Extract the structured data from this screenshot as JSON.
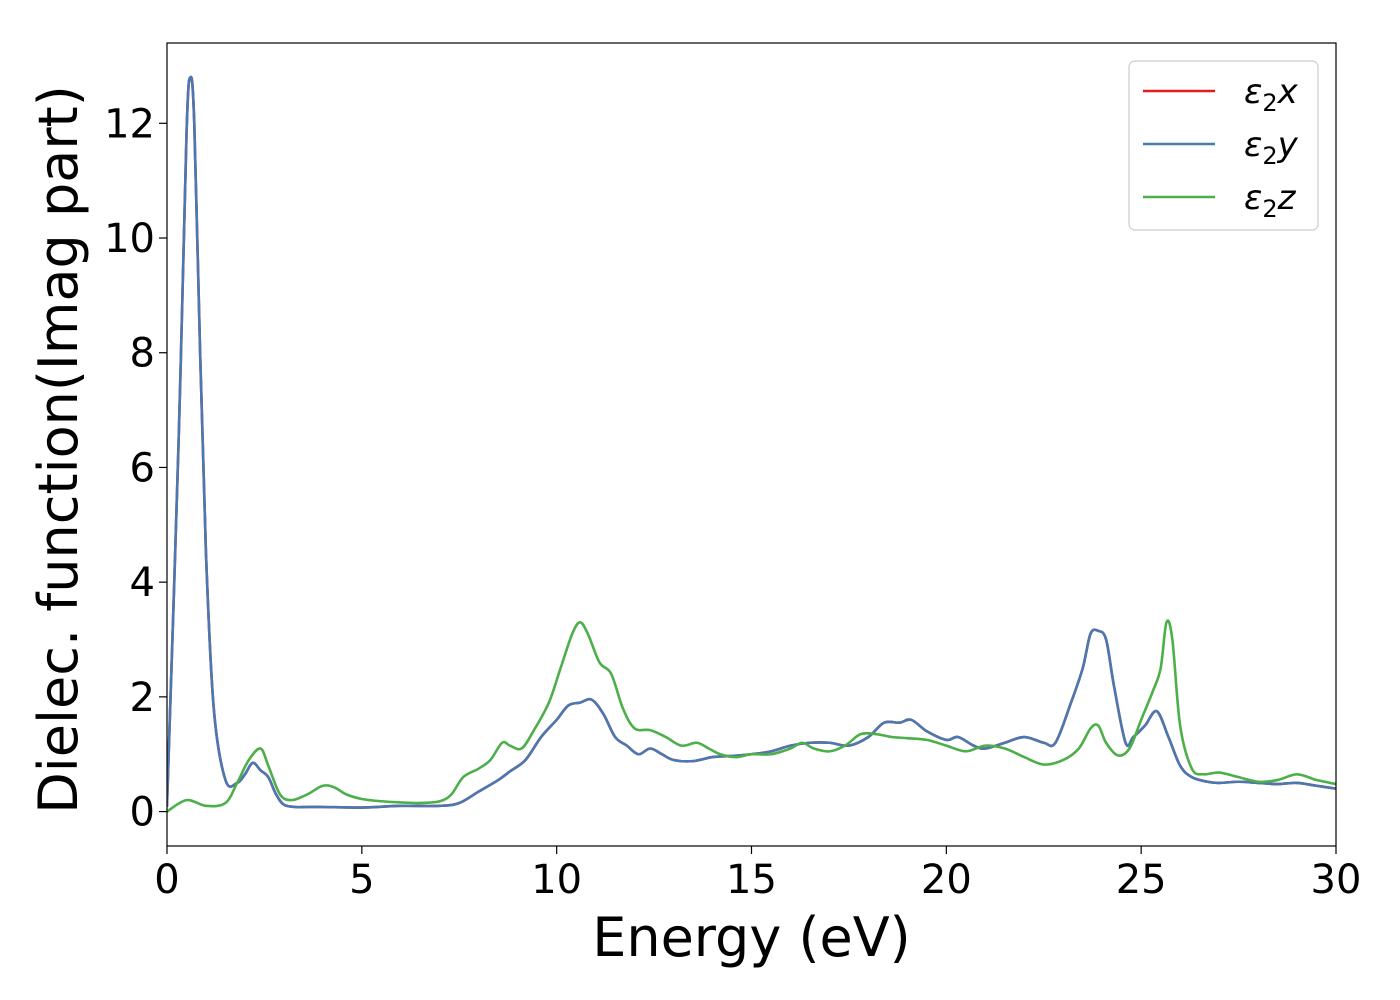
{
  "chart_data": {
    "type": "line",
    "xlabel": "Energy (eV)",
    "ylabel": "Dielec. function(Imag part)",
    "xlim": [
      0,
      30
    ],
    "ylim": [
      -0.6,
      13.4
    ],
    "xticks": [
      0,
      5,
      10,
      15,
      20,
      25,
      30
    ],
    "yticks": [
      0,
      2,
      4,
      6,
      8,
      10,
      12
    ],
    "grid": false,
    "legend_position": "top-right",
    "series": [
      {
        "name": "ε₂x",
        "legend_main": "ε",
        "legend_sub": "2",
        "legend_suffix": "x",
        "color": "#e41a1c",
        "x": [
          0,
          0.3,
          0.5,
          0.6,
          0.7,
          0.85,
          1.0,
          1.2,
          1.5,
          1.8,
          2.0,
          2.2,
          2.4,
          2.6,
          2.8,
          3.0,
          3.3,
          3.6,
          4,
          5,
          6,
          7,
          7.5,
          8,
          8.5,
          8.8,
          9.2,
          9.6,
          10.0,
          10.3,
          10.6,
          10.9,
          11.2,
          11.5,
          11.8,
          12.1,
          12.4,
          12.7,
          13.0,
          13.5,
          14,
          14.5,
          15,
          15.5,
          16,
          16.5,
          17,
          17.5,
          18,
          18.4,
          18.8,
          19.1,
          19.5,
          20,
          20.3,
          20.7,
          21,
          21.5,
          22,
          22.5,
          22.8,
          23.2,
          23.5,
          23.7,
          23.9,
          24.1,
          24.3,
          24.6,
          24.8,
          25.1,
          25.4,
          25.7,
          26.0,
          26.3,
          26.7,
          27,
          27.5,
          28,
          28.5,
          29,
          29.5,
          30
        ],
        "y": [
          0.1,
          6.5,
          11.8,
          12.8,
          12.0,
          8.0,
          4.5,
          1.8,
          0.55,
          0.5,
          0.65,
          0.85,
          0.72,
          0.6,
          0.3,
          0.12,
          0.08,
          0.08,
          0.08,
          0.07,
          0.1,
          0.1,
          0.15,
          0.35,
          0.55,
          0.7,
          0.9,
          1.3,
          1.6,
          1.85,
          1.9,
          1.95,
          1.7,
          1.3,
          1.15,
          1.0,
          1.1,
          1.0,
          0.9,
          0.88,
          0.95,
          0.97,
          1.0,
          1.05,
          1.15,
          1.2,
          1.2,
          1.15,
          1.3,
          1.55,
          1.55,
          1.6,
          1.4,
          1.25,
          1.3,
          1.15,
          1.1,
          1.2,
          1.3,
          1.2,
          1.2,
          1.9,
          2.5,
          3.1,
          3.15,
          3.0,
          2.2,
          1.2,
          1.3,
          1.5,
          1.75,
          1.3,
          0.8,
          0.6,
          0.52,
          0.5,
          0.52,
          0.5,
          0.48,
          0.5,
          0.45,
          0.4
        ]
      },
      {
        "name": "ε₂y",
        "legend_main": "ε",
        "legend_sub": "2",
        "legend_suffix": "y",
        "color": "#4a78b0",
        "x": [
          0,
          0.3,
          0.5,
          0.6,
          0.7,
          0.85,
          1.0,
          1.2,
          1.5,
          1.8,
          2.0,
          2.2,
          2.4,
          2.6,
          2.8,
          3.0,
          3.3,
          3.6,
          4,
          5,
          6,
          7,
          7.5,
          8,
          8.5,
          8.8,
          9.2,
          9.6,
          10.0,
          10.3,
          10.6,
          10.9,
          11.2,
          11.5,
          11.8,
          12.1,
          12.4,
          12.7,
          13.0,
          13.5,
          14,
          14.5,
          15,
          15.5,
          16,
          16.5,
          17,
          17.5,
          18,
          18.4,
          18.8,
          19.1,
          19.5,
          20,
          20.3,
          20.7,
          21,
          21.5,
          22,
          22.5,
          22.8,
          23.2,
          23.5,
          23.7,
          23.9,
          24.1,
          24.3,
          24.6,
          24.8,
          25.1,
          25.4,
          25.7,
          26.0,
          26.3,
          26.7,
          27,
          27.5,
          28,
          28.5,
          29,
          29.5,
          30
        ],
        "y": [
          0.1,
          6.5,
          11.8,
          12.8,
          12.0,
          8.0,
          4.5,
          1.8,
          0.55,
          0.5,
          0.65,
          0.85,
          0.72,
          0.6,
          0.3,
          0.12,
          0.08,
          0.08,
          0.08,
          0.07,
          0.1,
          0.1,
          0.15,
          0.35,
          0.55,
          0.7,
          0.9,
          1.3,
          1.6,
          1.85,
          1.9,
          1.95,
          1.7,
          1.3,
          1.15,
          1.0,
          1.1,
          1.0,
          0.9,
          0.88,
          0.95,
          0.97,
          1.0,
          1.05,
          1.15,
          1.2,
          1.2,
          1.15,
          1.3,
          1.55,
          1.55,
          1.6,
          1.4,
          1.25,
          1.3,
          1.15,
          1.1,
          1.2,
          1.3,
          1.2,
          1.2,
          1.9,
          2.5,
          3.1,
          3.15,
          3.0,
          2.2,
          1.2,
          1.3,
          1.5,
          1.75,
          1.3,
          0.8,
          0.6,
          0.52,
          0.5,
          0.52,
          0.5,
          0.48,
          0.5,
          0.45,
          0.4
        ]
      },
      {
        "name": "ε₂z",
        "legend_main": "ε",
        "legend_sub": "2",
        "legend_suffix": "z",
        "color": "#4daf4a",
        "x": [
          0,
          0.5,
          1.0,
          1.5,
          1.8,
          2.1,
          2.4,
          2.6,
          2.9,
          3.2,
          3.6,
          4.0,
          4.3,
          4.6,
          5.0,
          5.5,
          6.0,
          6.5,
          7.0,
          7.3,
          7.6,
          8.0,
          8.3,
          8.6,
          8.8,
          9.1,
          9.4,
          9.8,
          10.1,
          10.4,
          10.6,
          10.8,
          11.1,
          11.4,
          11.7,
          12.0,
          12.4,
          12.8,
          13.2,
          13.6,
          13.9,
          14.2,
          14.6,
          15.0,
          15.5,
          16.0,
          16.3,
          16.6,
          17.0,
          17.4,
          17.8,
          18.2,
          18.6,
          19.0,
          19.5,
          20.0,
          20.5,
          21.0,
          21.5,
          22.0,
          22.5,
          23.0,
          23.4,
          23.7,
          23.9,
          24.1,
          24.4,
          24.7,
          25.0,
          25.3,
          25.5,
          25.65,
          25.8,
          26.0,
          26.3,
          26.6,
          27.0,
          27.5,
          28.0,
          28.5,
          29.0,
          29.5,
          30.0
        ],
        "y": [
          0.0,
          0.2,
          0.1,
          0.15,
          0.5,
          0.9,
          1.1,
          0.8,
          0.3,
          0.2,
          0.3,
          0.45,
          0.42,
          0.3,
          0.22,
          0.18,
          0.16,
          0.15,
          0.18,
          0.3,
          0.6,
          0.75,
          0.9,
          1.2,
          1.15,
          1.1,
          1.4,
          1.9,
          2.5,
          3.1,
          3.3,
          3.1,
          2.6,
          2.4,
          1.8,
          1.45,
          1.42,
          1.3,
          1.15,
          1.2,
          1.1,
          1.0,
          0.95,
          1.0,
          1.0,
          1.1,
          1.2,
          1.1,
          1.05,
          1.15,
          1.35,
          1.35,
          1.3,
          1.28,
          1.25,
          1.15,
          1.05,
          1.15,
          1.1,
          0.95,
          0.82,
          0.9,
          1.1,
          1.45,
          1.5,
          1.2,
          0.98,
          1.1,
          1.6,
          2.1,
          2.5,
          3.3,
          3.0,
          1.5,
          0.75,
          0.65,
          0.68,
          0.6,
          0.52,
          0.55,
          0.65,
          0.55,
          0.48
        ]
      }
    ]
  }
}
